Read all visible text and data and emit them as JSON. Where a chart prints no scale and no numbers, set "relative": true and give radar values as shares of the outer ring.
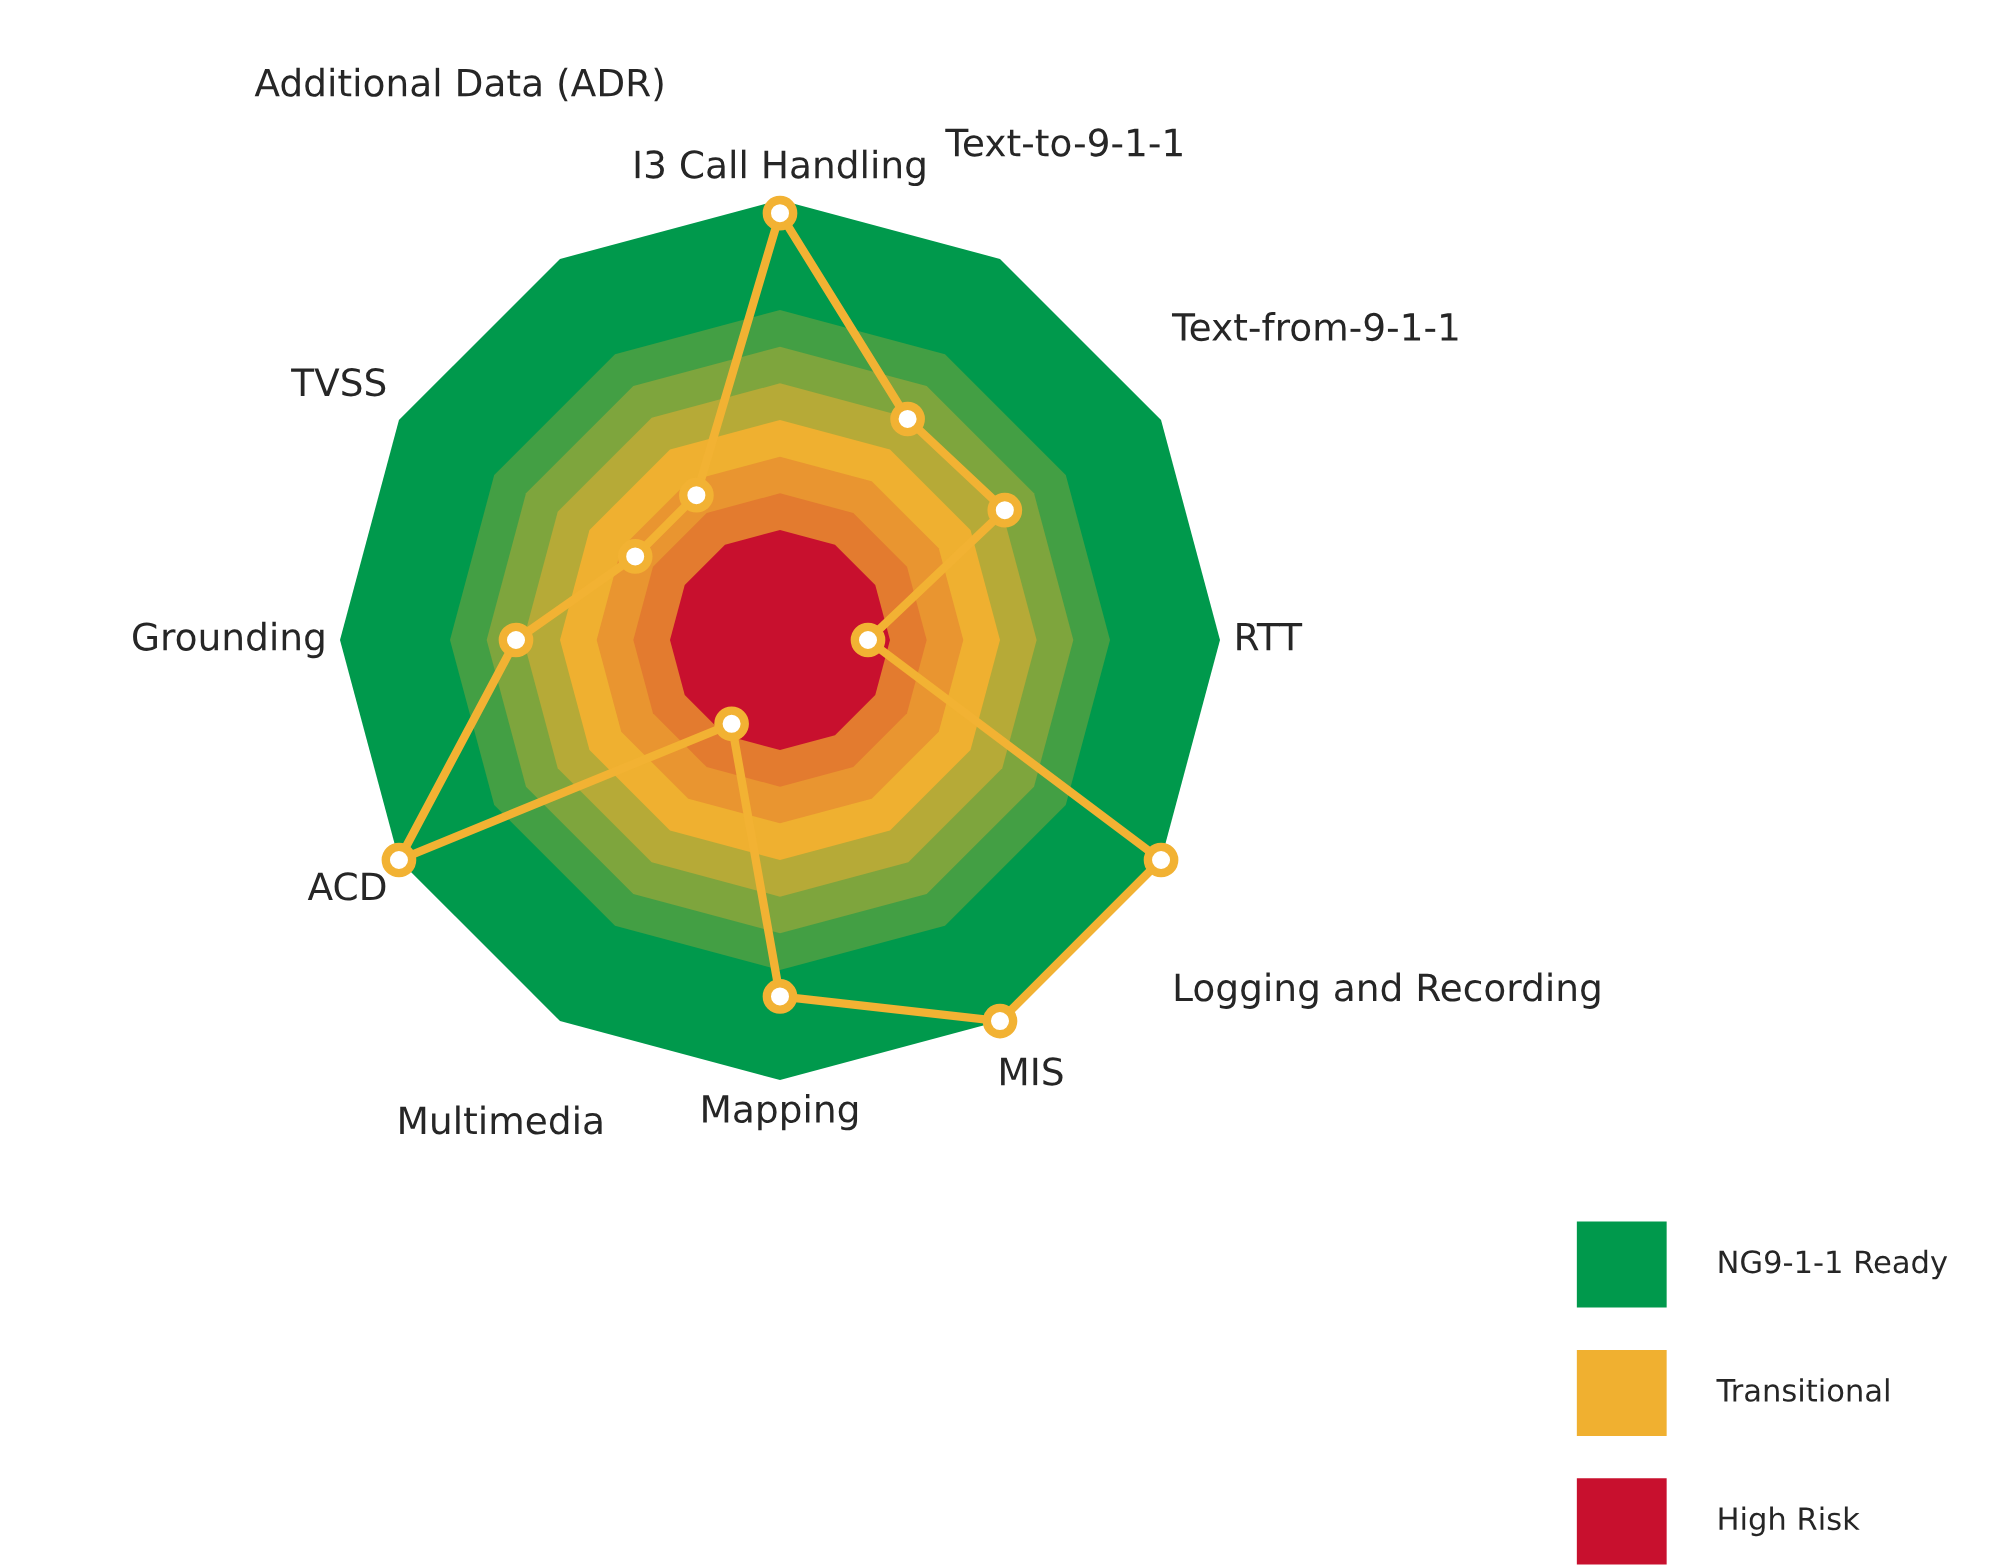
{
  "chart_data": {
    "type": "radar",
    "relative": true,
    "categories": [
      "I3 Call Handling",
      "Text-to-9-1-1",
      "Text-from-9-1-1",
      "RTT",
      "Logging and Recording",
      "MIS",
      "Mapping",
      "Multimedia",
      "ACD",
      "Grounding",
      "TVSS",
      "Additional Data (ADR)"
    ],
    "series": [
      {
        "color": "#f2b233",
        "values": [
          0.97,
          0.58,
          0.59,
          0.2,
          1.0,
          1.0,
          0.81,
          0.22,
          1.0,
          0.6,
          0.38,
          0.38
        ]
      }
    ],
    "annotations": [
      "NG9-1-1 Ready",
      "Transitional",
      "High Risk"
    ],
    "marker": "circle",
    "line_style": "solid"
  }
}
